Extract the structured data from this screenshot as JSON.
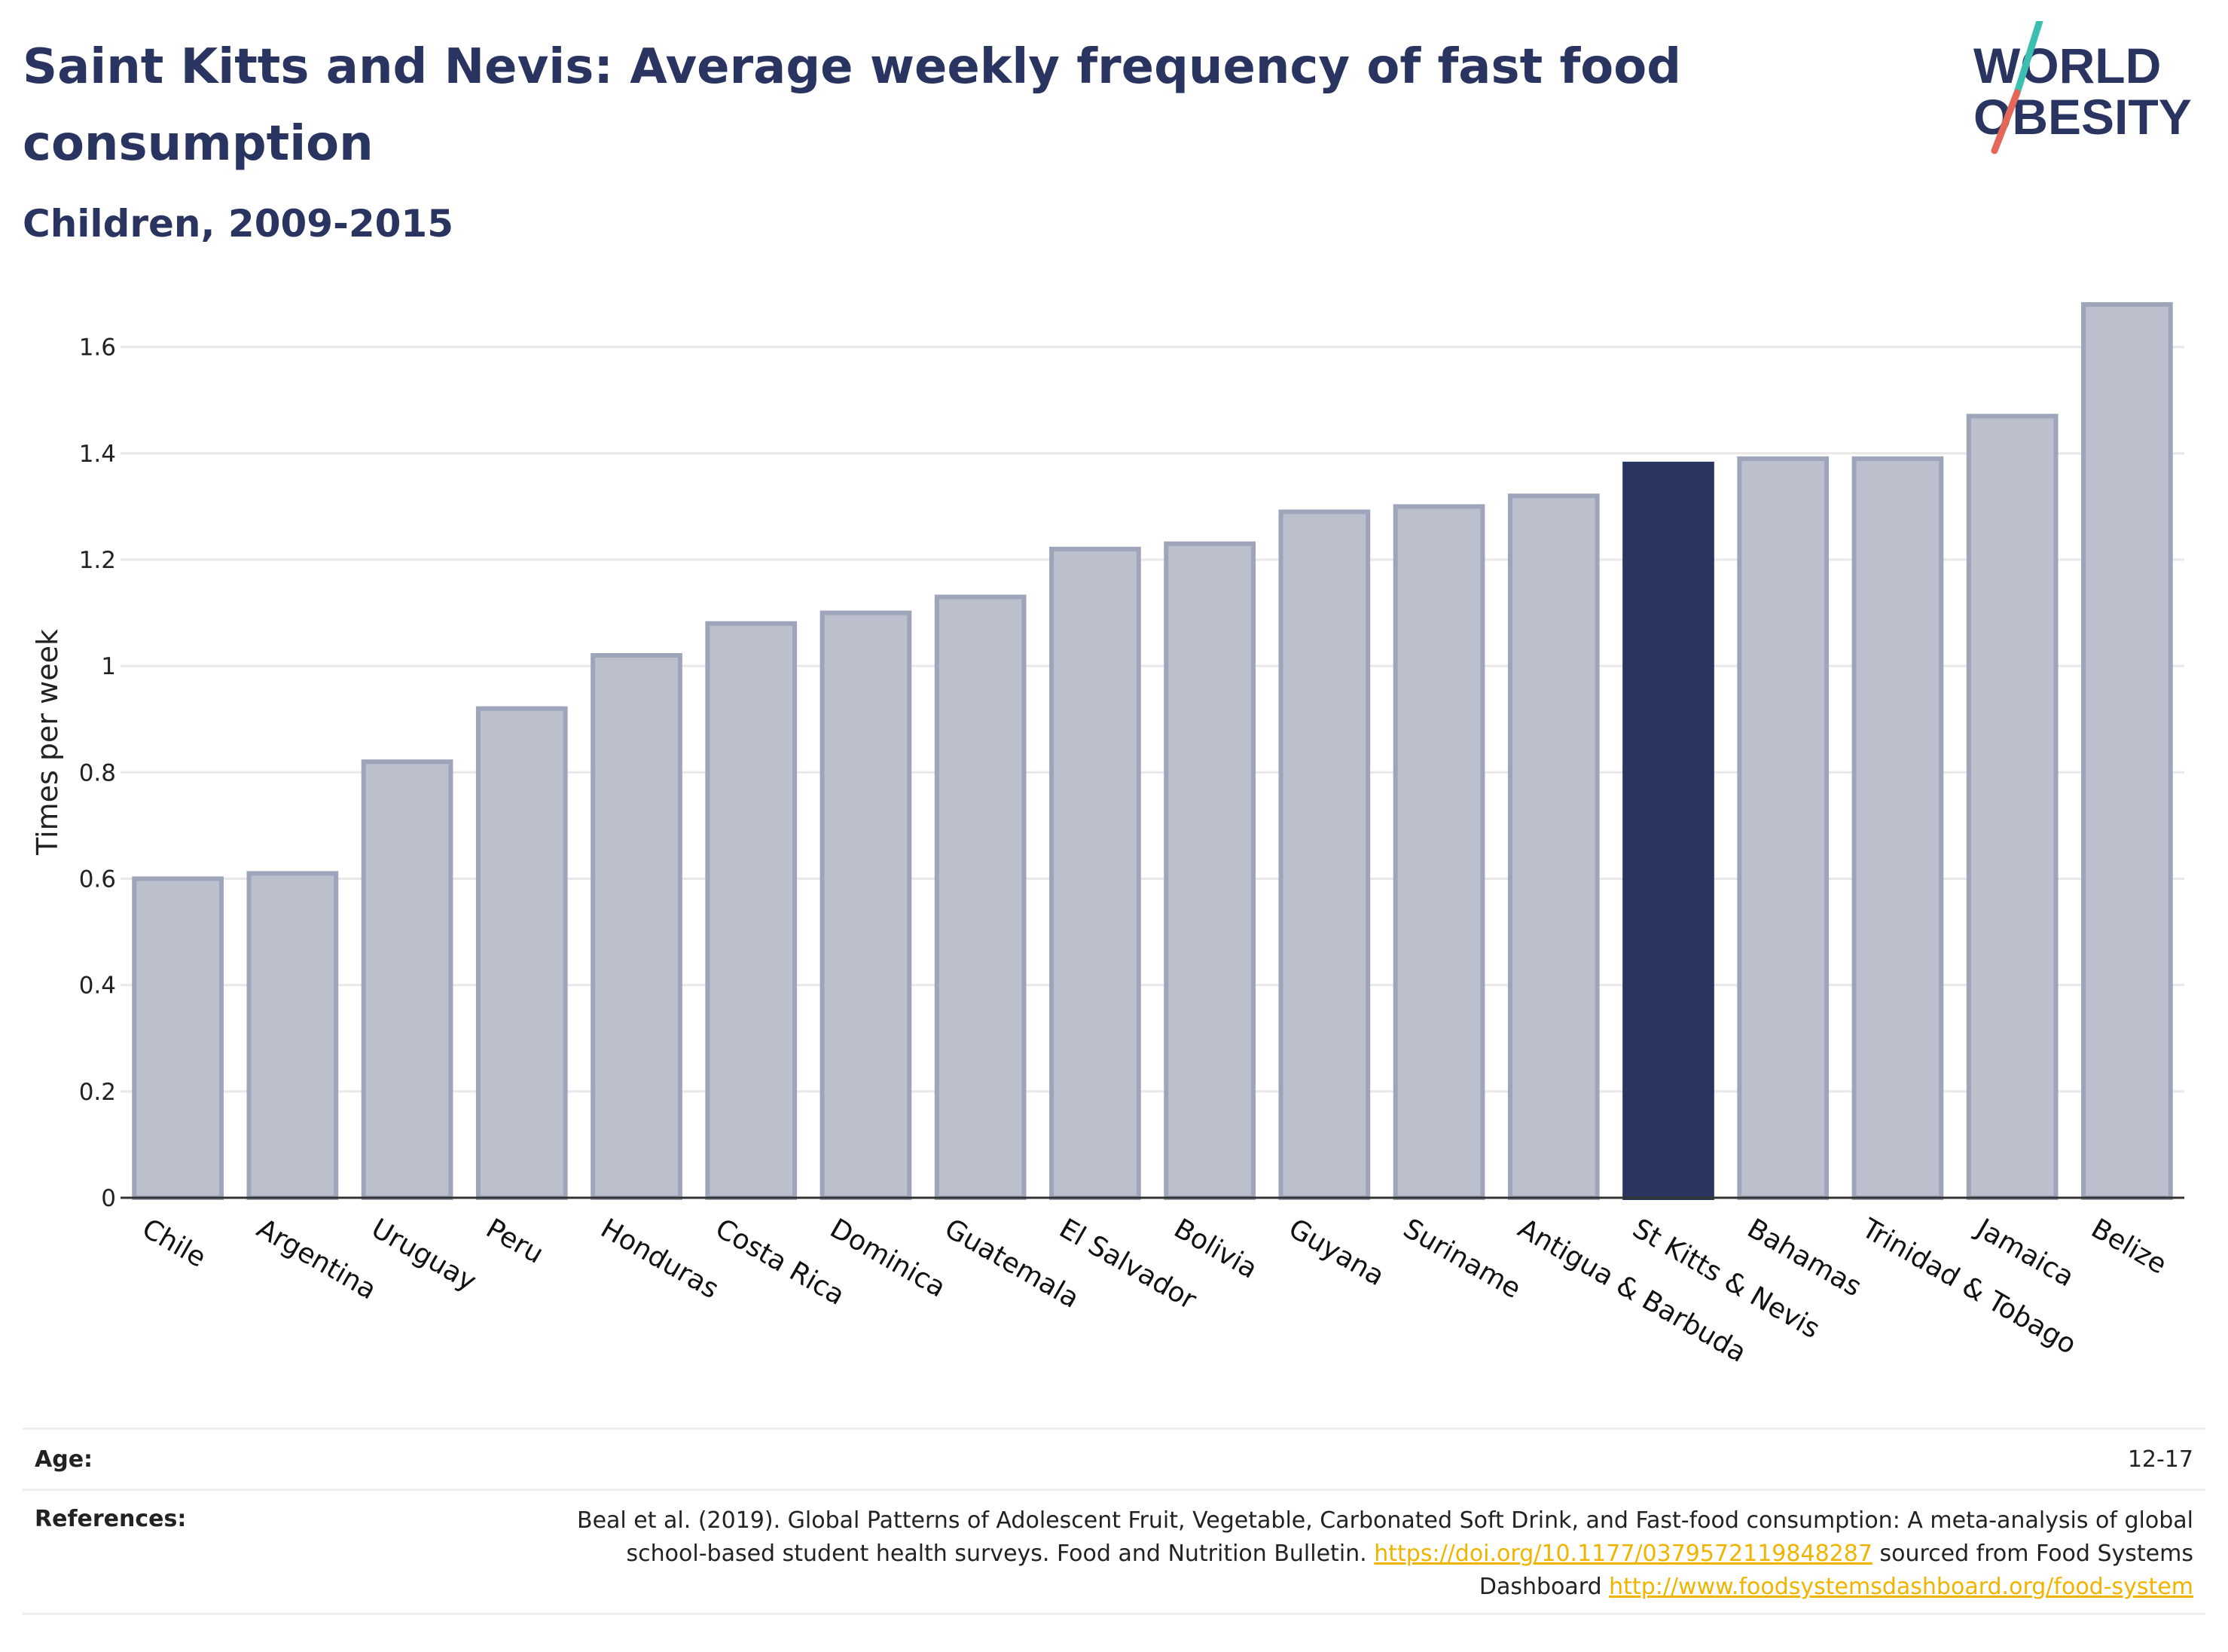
{
  "header": {
    "title": "Saint Kitts and Nevis: Average weekly frequency of fast food consumption",
    "subtitle": "Children, 2009-2015"
  },
  "logo": {
    "line1": "WORLD",
    "line2": "OBESITY"
  },
  "chart_data": {
    "type": "bar",
    "ylabel": "Times per week",
    "xlabel": "",
    "ylim": [
      0,
      1.7
    ],
    "yticks": [
      0,
      0.2,
      0.4,
      0.6,
      0.8,
      1,
      1.2,
      1.4,
      1.6
    ],
    "ytick_labels": [
      "0",
      "0.2",
      "0.4",
      "0.6",
      "0.8",
      "1",
      "1.2",
      "1.4",
      "1.6"
    ],
    "grid": true,
    "highlight": "St Kitts & Nevis",
    "categories": [
      "Chile",
      "Argentina",
      "Uruguay",
      "Peru",
      "Honduras",
      "Costa Rica",
      "Dominica",
      "Guatemala",
      "El Salvador",
      "Bolivia",
      "Guyana",
      "Suriname",
      "Antigua & Barbuda",
      "St Kitts & Nevis",
      "Bahamas",
      "Trinidad & Tobago",
      "Jamaica",
      "Belize"
    ],
    "values": [
      0.6,
      0.61,
      0.82,
      0.92,
      1.02,
      1.08,
      1.1,
      1.13,
      1.22,
      1.23,
      1.29,
      1.3,
      1.32,
      1.38,
      1.39,
      1.39,
      1.47,
      1.68
    ],
    "colors": {
      "bar_fill": "#bcc0cd",
      "bar_stroke": "#9ea4b9",
      "highlight_fill": "#2a3460",
      "axis": "#333333",
      "grid": "#e8e8e8"
    }
  },
  "footer": {
    "age_label": "Age:",
    "age_value": "12-17",
    "ref_label": "References:",
    "ref_text_1": "Beal et al. (2019). Global Patterns of Adolescent Fruit, Vegetable, Carbonated Soft Drink, and Fast-food consumption: A meta-analysis of global school-based student health surveys. Food and Nutrition Bulletin. ",
    "ref_link_1": "https://doi.org/10.1177/0379572119848287",
    "ref_text_2": " sourced from Food Systems Dashboard ",
    "ref_link_2": "http://www.foodsystemsdashboard.org/food-system"
  }
}
